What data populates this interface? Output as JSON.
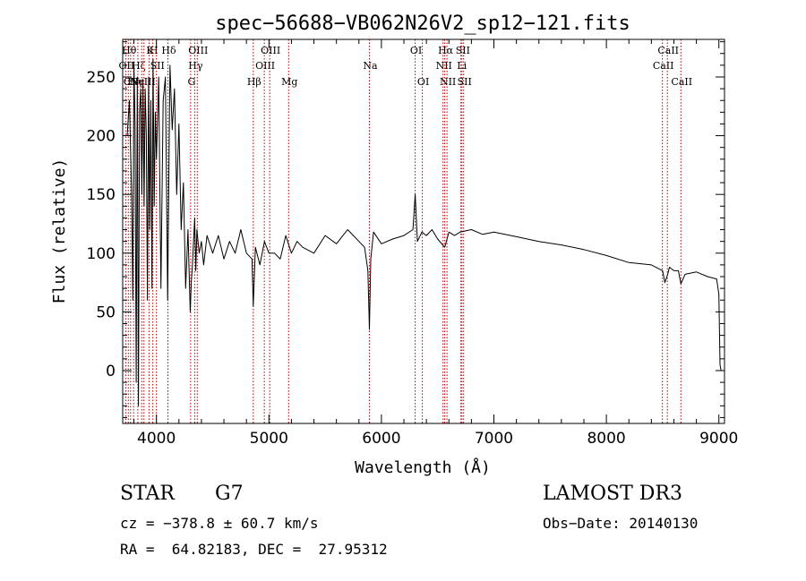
{
  "chart_data": {
    "type": "line",
    "title": "spec−56688−VB062N26V2_sp12−121.fits",
    "xlabel": "Wavelength (Å)",
    "ylabel": "Flux (relative)",
    "xlim": [
      3700,
      9050
    ],
    "ylim": [
      -45,
      282
    ],
    "xticks": [
      4000,
      5000,
      6000,
      7000,
      8000,
      9000
    ],
    "yticks": [
      0,
      50,
      100,
      150,
      200,
      250
    ],
    "grid": false,
    "series": [
      {
        "name": "spectrum",
        "x": [
          3740,
          3760,
          3780,
          3790,
          3800,
          3810,
          3820,
          3830,
          3840,
          3850,
          3860,
          3870,
          3880,
          3890,
          3900,
          3910,
          3920,
          3930,
          3940,
          3950,
          3960,
          3970,
          3980,
          3990,
          4000,
          4020,
          4040,
          4060,
          4080,
          4100,
          4120,
          4140,
          4160,
          4180,
          4200,
          4220,
          4240,
          4260,
          4280,
          4300,
          4310,
          4320,
          4330,
          4340,
          4350,
          4360,
          4380,
          4400,
          4420,
          4450,
          4500,
          4550,
          4600,
          4650,
          4700,
          4750,
          4800,
          4850,
          4861,
          4880,
          4920,
          4960,
          5000,
          5050,
          5100,
          5150,
          5200,
          5250,
          5300,
          5400,
          5500,
          5600,
          5700,
          5800,
          5850,
          5880,
          5893,
          5905,
          5930,
          6000,
          6100,
          6200,
          6280,
          6300,
          6320,
          6360,
          6400,
          6450,
          6500,
          6563,
          6600,
          6650,
          6700,
          6800,
          6900,
          7000,
          7200,
          7400,
          7600,
          7800,
          8000,
          8200,
          8400,
          8500,
          8520,
          8545,
          8560,
          8600,
          8640,
          8662,
          8700,
          8800,
          8900,
          8980,
          9000,
          9010,
          9020
        ],
        "y": [
          200,
          230,
          150,
          60,
          260,
          210,
          -10,
          250,
          -30,
          220,
          240,
          150,
          248,
          140,
          240,
          200,
          60,
          250,
          120,
          230,
          70,
          265,
          140,
          220,
          180,
          250,
          70,
          230,
          250,
          60,
          260,
          205,
          240,
          150,
          210,
          120,
          160,
          70,
          120,
          50,
          75,
          90,
          110,
          130,
          85,
          120,
          100,
          110,
          90,
          115,
          100,
          115,
          95,
          110,
          100,
          120,
          100,
          95,
          55,
          105,
          90,
          110,
          100,
          100,
          95,
          115,
          100,
          110,
          105,
          100,
          115,
          108,
          120,
          110,
          105,
          85,
          35,
          95,
          118,
          108,
          112,
          115,
          120,
          150,
          110,
          118,
          115,
          120,
          112,
          105,
          118,
          115,
          118,
          120,
          116,
          118,
          114,
          110,
          107,
          103,
          98,
          92,
          90,
          85,
          75,
          82,
          88,
          85,
          85,
          74,
          82,
          84,
          80,
          78,
          65,
          5,
          0
        ]
      }
    ],
    "vlines": [
      {
        "x": 3750,
        "label": "Hθ",
        "row": 0
      },
      {
        "x": 3727,
        "label": "OII",
        "row": 1
      },
      {
        "x": 3770,
        "label": "CN",
        "row": 2
      },
      {
        "x": 3797,
        "label": "Hη",
        "row": 2
      },
      {
        "x": 3835,
        "label": "Hζ",
        "row": 1
      },
      {
        "x": 3869,
        "label": "NeIII",
        "row": 2
      },
      {
        "x": 3889,
        "label": "",
        "row": 2
      },
      {
        "x": 3934,
        "label": "K",
        "row": 0
      },
      {
        "x": 3968,
        "label": "H",
        "row": 0
      },
      {
        "x": 4000,
        "label": "SII",
        "row": 1
      },
      {
        "x": 4102,
        "label": "Hδ",
        "row": 0
      },
      {
        "x": 4304,
        "label": "G",
        "row": 2
      },
      {
        "x": 4340,
        "label": "Hγ",
        "row": 1
      },
      {
        "x": 4363,
        "label": "OIII",
        "row": 0
      },
      {
        "x": 4861,
        "label": "Hβ",
        "row": 2
      },
      {
        "x": 4959,
        "label": "OIII",
        "row": 1
      },
      {
        "x": 5007,
        "label": "OIII",
        "row": 0
      },
      {
        "x": 5175,
        "label": "Mg",
        "row": 2
      },
      {
        "x": 5893,
        "label": "Na",
        "row": 1
      },
      {
        "x": 6300,
        "label": "OI",
        "row": 0
      },
      {
        "x": 6364,
        "label": "OI",
        "row": 2
      },
      {
        "x": 6548,
        "label": "NII",
        "row": 1
      },
      {
        "x": 6563,
        "label": "Hα",
        "row": 0
      },
      {
        "x": 6583,
        "label": "NII",
        "row": 2
      },
      {
        "x": 6707,
        "label": "Li",
        "row": 1
      },
      {
        "x": 6716,
        "label": "SII",
        "row": 0
      },
      {
        "x": 6731,
        "label": "SII",
        "row": 2
      },
      {
        "x": 8498,
        "label": "CaII",
        "row": 1
      },
      {
        "x": 8542,
        "label": "CaII",
        "row": 0
      },
      {
        "x": 8662,
        "label": "CaII",
        "row": 2
      }
    ]
  },
  "info": {
    "object_type": "STAR",
    "subclass": "G7",
    "survey": "LAMOST DR3",
    "cz_line": "cz = −378.8 ± 60.7 km/s",
    "obs_date_line": "Obs−Date: 20140130",
    "coords_line": "RA =  64.82183, DEC =  27.95312"
  },
  "colors": {
    "spectrum": "#000000",
    "line_marker": "#b00000",
    "axes": "#000000"
  }
}
